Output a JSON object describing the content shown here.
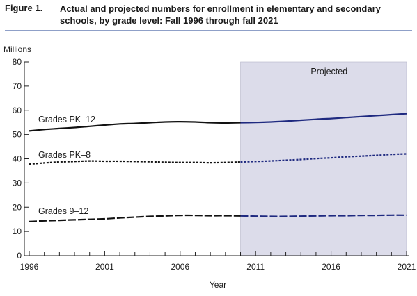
{
  "figure": {
    "label": "Figure 1.",
    "title": "Actual and projected numbers for enrollment in elementary and secondary schools, by grade level: Fall 1996 through fall 2021"
  },
  "chart_data": {
    "type": "line",
    "ylabel": "Millions",
    "xlabel": "Year",
    "xlim": [
      1996,
      2021
    ],
    "ylim": [
      0,
      80
    ],
    "yticks": [
      0,
      10,
      20,
      30,
      40,
      50,
      60,
      70,
      80
    ],
    "xtick_labels": [
      1996,
      2001,
      2006,
      2011,
      2016,
      2021
    ],
    "grid": false,
    "projected_region": {
      "label": "Projected",
      "from": 2010,
      "to": 2021,
      "color": "#dcdcea"
    },
    "actual_color": "#111111",
    "projected_color": "#1f2a80",
    "x": [
      1996,
      1997,
      1998,
      1999,
      2000,
      2001,
      2002,
      2003,
      2004,
      2005,
      2006,
      2007,
      2008,
      2009,
      2010,
      2011,
      2012,
      2013,
      2014,
      2015,
      2016,
      2017,
      2018,
      2019,
      2020,
      2021
    ],
    "last_actual_year": 2010,
    "series": [
      {
        "name": "Grades PK–12",
        "style": "solid",
        "values": [
          51.5,
          52.1,
          52.5,
          52.9,
          53.4,
          53.9,
          54.4,
          54.6,
          54.9,
          55.2,
          55.3,
          55.2,
          54.9,
          54.8,
          54.9,
          55.0,
          55.2,
          55.5,
          55.9,
          56.3,
          56.6,
          57.0,
          57.4,
          57.8,
          58.2,
          58.6
        ]
      },
      {
        "name": "Grades PK–8",
        "style": "dotted",
        "values": [
          37.8,
          38.3,
          38.7,
          38.9,
          39.1,
          39.0,
          39.0,
          38.9,
          38.8,
          38.6,
          38.5,
          38.5,
          38.4,
          38.5,
          38.7,
          38.9,
          39.1,
          39.4,
          39.7,
          40.1,
          40.4,
          40.8,
          41.1,
          41.4,
          41.8,
          42.0
        ]
      },
      {
        "name": "Grades 9–12",
        "style": "dashed",
        "values": [
          14.1,
          14.4,
          14.6,
          14.8,
          15.0,
          15.2,
          15.6,
          15.9,
          16.2,
          16.4,
          16.6,
          16.6,
          16.5,
          16.5,
          16.4,
          16.3,
          16.2,
          16.2,
          16.3,
          16.4,
          16.5,
          16.5,
          16.6,
          16.6,
          16.7,
          16.7
        ]
      }
    ]
  }
}
